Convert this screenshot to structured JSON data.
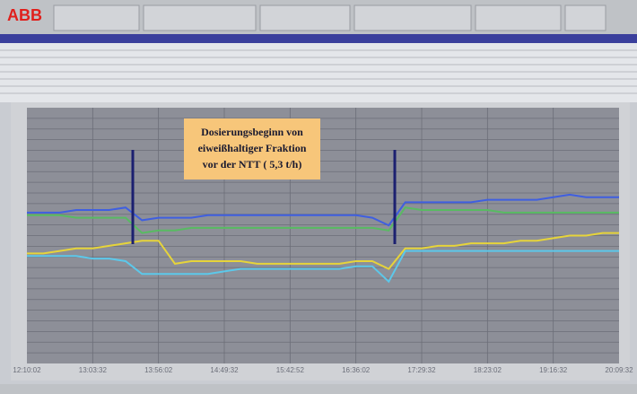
{
  "header": {
    "logo": "ABB"
  },
  "chart_data": {
    "type": "line",
    "annotation": [
      "Dosierungsbeginn von",
      "eiweißhaltiger Fraktion",
      "vor der NTT ( 5,3 t/h)"
    ],
    "categories": [
      "12:10:02",
      null,
      null,
      null,
      "13:03:32",
      null,
      null,
      null,
      "13:56:02",
      null,
      null,
      null,
      "14:49:32",
      null,
      null,
      null,
      "15:42:52",
      null,
      null,
      null,
      "16:36:02",
      null,
      null,
      null,
      "17:29:32",
      null,
      null,
      null,
      "18:23:02",
      null,
      null,
      null,
      "19:16:32",
      null,
      null,
      null,
      "20:09:32"
    ],
    "ylim": [
      0,
      100
    ],
    "series": [
      {
        "color": "#3f5fe0",
        "values": [
          59,
          59,
          59,
          60,
          60,
          60,
          61,
          56,
          57,
          57,
          57,
          58,
          58,
          58,
          58,
          58,
          58,
          58,
          58,
          58,
          58,
          57,
          54,
          63,
          63,
          63,
          63,
          63,
          64,
          64,
          64,
          64,
          65,
          66,
          65,
          65,
          65
        ]
      },
      {
        "color": "#58bb62",
        "values": [
          58,
          58,
          58,
          57,
          57,
          57,
          57,
          51,
          52,
          52,
          53,
          53,
          53,
          53,
          53,
          53,
          53,
          53,
          53,
          53,
          53,
          53,
          52,
          61,
          60,
          60,
          60,
          60,
          60,
          59,
          59,
          59,
          59,
          59,
          59,
          59,
          59
        ]
      },
      {
        "color": "#e6d43a",
        "values": [
          43,
          43,
          44,
          45,
          45,
          46,
          47,
          48,
          48,
          39,
          40,
          40,
          40,
          40,
          39,
          39,
          39,
          39,
          39,
          39,
          40,
          40,
          37,
          45,
          45,
          46,
          46,
          47,
          47,
          47,
          48,
          48,
          49,
          50,
          50,
          51,
          51
        ]
      },
      {
        "color": "#5cc8ea",
        "values": [
          42,
          42,
          42,
          42,
          41,
          41,
          40,
          35,
          35,
          35,
          35,
          35,
          36,
          37,
          37,
          37,
          37,
          37,
          37,
          37,
          38,
          38,
          32,
          44,
          44,
          44,
          44,
          44,
          44,
          44,
          44,
          44,
          44,
          44,
          44,
          44,
          44
        ]
      }
    ]
  }
}
